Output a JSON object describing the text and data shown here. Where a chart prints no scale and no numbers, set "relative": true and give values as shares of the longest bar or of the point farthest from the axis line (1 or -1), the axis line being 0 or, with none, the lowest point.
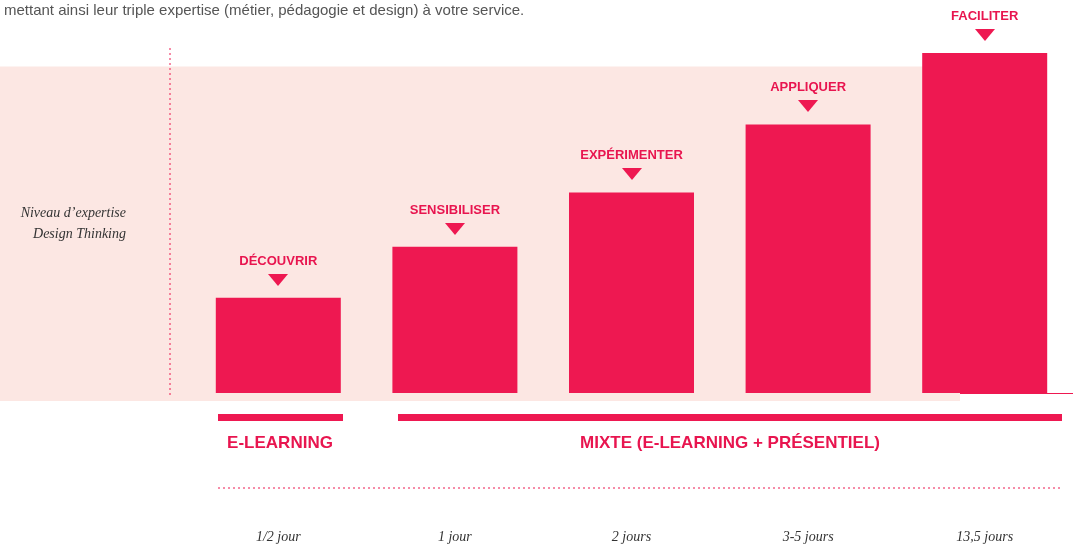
{
  "chart_data": {
    "type": "bar",
    "relative": true,
    "ylabel": "Niveau d’expertise\nDesign Thinking",
    "categories": [
      "1/2 jour",
      "1 jour",
      "2 jours",
      "3-5 jours",
      "13,5 jours"
    ],
    "values": [
      0.28,
      0.43,
      0.59,
      0.79,
      1
    ],
    "color": "#ee1851",
    "grid": false,
    "bands": [
      {
        "axis": "y",
        "from": 0,
        "to": 0.96,
        "color": "#fce7e3"
      }
    ],
    "annotations": [
      "mettant ainsi leur triple expertise (métier, pédagogie et design) à votre service.",
      "E-LEARNING",
      "MIXTE (E-LEARNING + PRÉSENTIEL)",
      {
        "text": "DÉCOUVRIR",
        "x": "1/2 jour",
        "y": 0.28
      },
      {
        "text": "SENSIBILISER",
        "x": "1 jour",
        "y": 0.43
      },
      {
        "text": "EXPÉRIMENTER",
        "x": "2 jours",
        "y": 0.59
      },
      {
        "text": "APPLIQUER",
        "x": "3-5 jours",
        "y": 0.79
      },
      {
        "text": "FACILITER",
        "x": "13,5 jours",
        "y": 1
      }
    ]
  }
}
